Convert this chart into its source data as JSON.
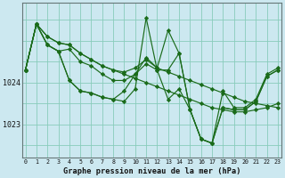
{
  "xlabel": "Graphe pression niveau de la mer (hPa)",
  "background_color": "#cce8f0",
  "plot_bg_color": "#cce8f0",
  "grid_color": "#88ccbb",
  "line_color": "#1a6b1a",
  "x_ticks": [
    0,
    1,
    2,
    3,
    4,
    5,
    6,
    7,
    8,
    9,
    10,
    11,
    12,
    13,
    14,
    15,
    16,
    17,
    18,
    19,
    20,
    21,
    22,
    23
  ],
  "y_ticks": [
    1023,
    1024
  ],
  "ylim": [
    1022.2,
    1025.9
  ],
  "xlim": [
    -0.3,
    23.3
  ],
  "series": [
    [
      1024.3,
      1025.4,
      1024.9,
      1024.75,
      1024.05,
      1023.8,
      1023.75,
      1023.65,
      1023.6,
      1023.55,
      1023.85,
      1025.55,
      1024.3,
      1023.6,
      1023.85,
      1023.35,
      1022.65,
      1022.55,
      1023.4,
      1023.35,
      1023.35,
      1023.55,
      1024.15,
      1024.3
    ],
    [
      1024.3,
      1025.4,
      1024.9,
      1024.75,
      1024.05,
      1023.8,
      1023.75,
      1023.65,
      1023.6,
      1023.8,
      1024.2,
      1024.45,
      1024.3,
      1024.3,
      1024.7,
      1023.35,
      1022.65,
      1022.55,
      1023.4,
      1023.35,
      1023.35,
      1023.55,
      1024.15,
      1024.3
    ],
    [
      1024.3,
      1025.4,
      1024.9,
      1024.75,
      1024.8,
      1024.5,
      1024.4,
      1024.2,
      1024.05,
      1024.05,
      1024.2,
      1024.6,
      1024.35,
      1025.25,
      1024.7,
      1023.35,
      1022.65,
      1022.55,
      1023.8,
      1023.4,
      1023.4,
      1023.6,
      1024.2,
      1024.35
    ],
    [
      1024.3,
      1025.4,
      1025.1,
      1024.95,
      1024.9,
      1024.7,
      1024.55,
      1024.4,
      1024.3,
      1024.25,
      1024.35,
      1024.55,
      1024.35,
      1024.25,
      1024.15,
      1024.05,
      1023.95,
      1023.85,
      1023.75,
      1023.65,
      1023.55,
      1023.5,
      1023.45,
      1023.4
    ],
    [
      1024.3,
      1025.4,
      1025.1,
      1024.95,
      1024.9,
      1024.7,
      1024.55,
      1024.4,
      1024.3,
      1024.2,
      1024.1,
      1024.0,
      1023.9,
      1023.8,
      1023.7,
      1023.6,
      1023.5,
      1023.4,
      1023.35,
      1023.3,
      1023.3,
      1023.35,
      1023.4,
      1023.5
    ]
  ]
}
